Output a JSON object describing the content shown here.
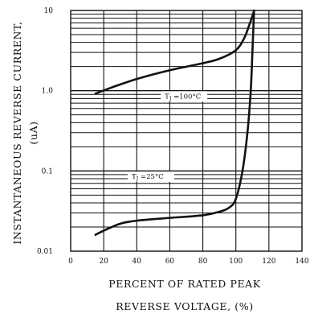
{
  "chart_data": {
    "type": "line",
    "title": "",
    "xlabel_lines": [
      "PERCENT OF RATED PEAK",
      "REVERSE VOLTAGE, (%)"
    ],
    "ylabel_lines": [
      "INSTANTANEOUS REVERSE CURRENT,",
      "(uA)"
    ],
    "x_ticks": [
      "0",
      "20",
      "40",
      "60",
      "80",
      "100",
      "120",
      "140"
    ],
    "y_ticks": [
      "0.01",
      "0.1",
      "1.0",
      "10"
    ],
    "xlim": [
      0,
      140
    ],
    "ylim": [
      0.01,
      10
    ],
    "y_scale": "log",
    "grid": true,
    "series": [
      {
        "name": "TJ =100°C",
        "label_sub": "J",
        "label_rest": " =100°C",
        "x": [
          15,
          25,
          40,
          60,
          80,
          90,
          100,
          105,
          108,
          110,
          111
        ],
        "y": [
          0.92,
          1.1,
          1.4,
          1.8,
          2.2,
          2.5,
          3.2,
          4.5,
          6.5,
          8.5,
          10
        ]
      },
      {
        "name": "TJ =25°C",
        "label_sub": "J",
        "label_rest": " =25°C",
        "x": [
          15,
          20,
          30,
          40,
          60,
          80,
          90,
          96,
          100,
          104,
          107,
          109,
          110,
          111
        ],
        "y": [
          0.016,
          0.018,
          0.022,
          0.024,
          0.026,
          0.028,
          0.031,
          0.035,
          0.045,
          0.1,
          0.3,
          1.0,
          3.0,
          10
        ]
      }
    ]
  }
}
